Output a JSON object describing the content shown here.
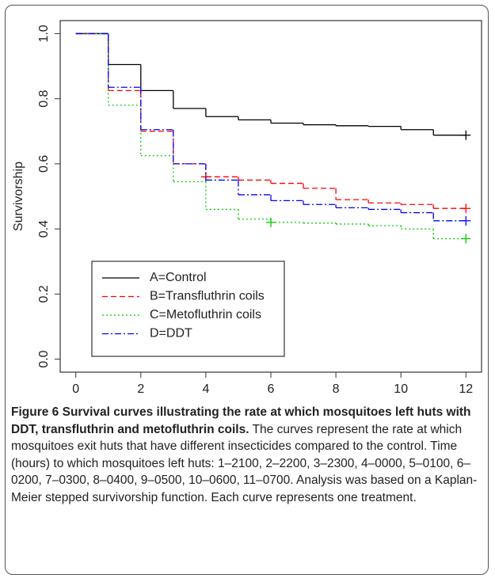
{
  "chart_data": {
    "type": "step",
    "ylabel": "Survivorship",
    "x": [
      0,
      1,
      2,
      3,
      4,
      5,
      6,
      7,
      8,
      9,
      10,
      11,
      12
    ],
    "xlim": [
      -0.48,
      12.48
    ],
    "ylim": [
      -0.04,
      1.04
    ],
    "xticks": [
      0,
      2,
      4,
      6,
      8,
      10,
      12
    ],
    "yticks": [
      {
        "value": 0,
        "label": "0.0"
      },
      0.2,
      0.4,
      0.6,
      0.8,
      {
        "value": 1,
        "label": "1.0"
      }
    ],
    "legend": "bottomleft",
    "series": [
      {
        "name": "A=Control",
        "color": "#000000",
        "linestyle": "solid",
        "values": [
          1.0,
          0.905,
          0.825,
          0.77,
          0.745,
          0.735,
          0.725,
          0.72,
          0.717,
          0.715,
          0.705,
          0.688,
          0.688
        ],
        "censored": [
          {
            "x": 12,
            "y": 0.688
          }
        ]
      },
      {
        "name": "B=Transfluthrin coils",
        "color": "#ff0000",
        "linestyle": "dashed",
        "values": [
          1.0,
          0.825,
          0.7,
          0.6,
          0.56,
          0.55,
          0.54,
          0.525,
          0.49,
          0.48,
          0.475,
          0.463,
          0.463
        ],
        "censored": [
          {
            "x": 4,
            "y": 0.56
          },
          {
            "x": 12,
            "y": 0.463
          }
        ]
      },
      {
        "name": "C=Metofluthrin coils",
        "color": "#00cc00",
        "linestyle": "dotted",
        "values": [
          1.0,
          0.78,
          0.625,
          0.545,
          0.46,
          0.43,
          0.42,
          0.418,
          0.415,
          0.41,
          0.4,
          0.37,
          0.37
        ],
        "censored": [
          {
            "x": 6,
            "y": 0.42
          },
          {
            "x": 12,
            "y": 0.37
          }
        ]
      },
      {
        "name": "D=DDT",
        "color": "#0000ff",
        "linestyle": "dashdot",
        "values": [
          1.0,
          0.835,
          0.705,
          0.6,
          0.55,
          0.505,
          0.487,
          0.475,
          0.465,
          0.46,
          0.45,
          0.425,
          0.425
        ],
        "censored": [
          {
            "x": 12,
            "y": 0.425
          }
        ]
      }
    ]
  },
  "caption": {
    "label": "Figure 6",
    "title": "Survival curves illustrating the rate at which mosquitoes left huts with DDT, transfluthrin and metofluthrin coils.",
    "text": "The curves represent the rate at which mosquitoes exit huts that have different insecticides compared to the control. Time (hours) to which mosquitoes left huts: 1–2100, 2–2200, 3–2300, 4–0000, 5–0100, 6–0200, 7–0300, 8–0400, 9–0500, 10–0600, 11–0700. Analysis was based on a Kaplan-Meier stepped survivorship function. Each curve represents one treatment."
  }
}
